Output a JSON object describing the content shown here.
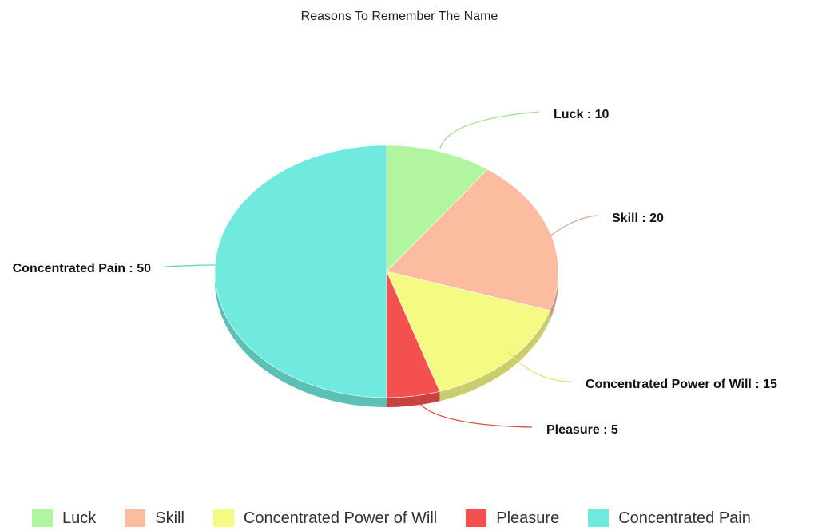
{
  "chart_data": {
    "type": "pie",
    "title": "Reasons To Remember The Name",
    "slices": [
      {
        "label": "Luck",
        "value": 10,
        "color": "#b2f5a0"
      },
      {
        "label": "Skill",
        "value": 20,
        "color": "#fbbca0"
      },
      {
        "label": "Concentrated Power of Will",
        "value": 15,
        "color": "#f5fa82"
      },
      {
        "label": "Pleasure",
        "value": 5,
        "color": "#f55050"
      },
      {
        "label": "Concentrated Pain",
        "value": 50,
        "color": "#70eadf"
      }
    ],
    "data_label_format": "{label} : {value}",
    "legend_position": "bottom",
    "style": "3d"
  }
}
